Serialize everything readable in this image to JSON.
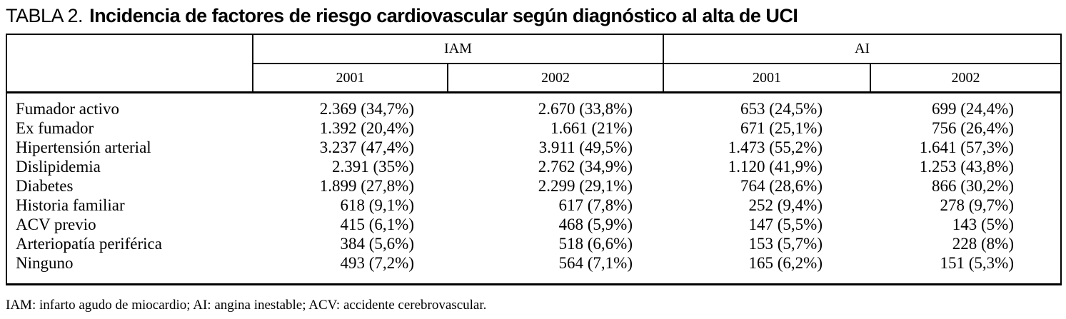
{
  "title": {
    "prefix": "TABLA 2.",
    "text": "Incidencia de factores de riesgo cardiovascular según diagnóstico al alta de UCI"
  },
  "table": {
    "group_headers": [
      {
        "label": "IAM",
        "colspan": 2
      },
      {
        "label": "AI",
        "colspan": 2
      }
    ],
    "year_headers": [
      "2001",
      "2002",
      "2001",
      "2002"
    ],
    "rows": [
      {
        "label": "Fumador activo",
        "values": [
          "2.369 (34,7%)",
          "2.670 (33,8%)",
          "653 (24,5%)",
          "699 (24,4%)"
        ]
      },
      {
        "label": "Ex fumador",
        "values": [
          "1.392 (20,4%)",
          "1.661 (21%)",
          "671 (25,1%)",
          "756 (26,4%)"
        ]
      },
      {
        "label": "Hipertensión arterial",
        "values": [
          "3.237 (47,4%)",
          "3.911 (49,5%)",
          "1.473 (55,2%)",
          "1.641 (57,3%)"
        ]
      },
      {
        "label": "Dislipidemia",
        "values": [
          "2.391 (35%)",
          "2.762 (34,9%)",
          "1.120 (41,9%)",
          "1.253 (43,8%)"
        ]
      },
      {
        "label": "Diabetes",
        "values": [
          "1.899 (27,8%)",
          "2.299 (29,1%)",
          "764 (28,6%)",
          "866 (30,2%)"
        ]
      },
      {
        "label": "Historia familiar",
        "values": [
          "618 (9,1%)",
          "617 (7,8%)",
          "252 (9,4%)",
          "278 (9,7%)"
        ]
      },
      {
        "label": "ACV previo",
        "values": [
          "415 (6,1%)",
          "468 (5,9%)",
          "147 (5,5%)",
          "143 (5%)"
        ]
      },
      {
        "label": "Arteriopatía periférica",
        "values": [
          "384 (5,6%)",
          "518 (6,6%)",
          "153 (5,7%)",
          "228 (8%)"
        ]
      },
      {
        "label": "Ninguno",
        "values": [
          "493 (7,2%)",
          "564 (7,1%)",
          "165 (6,2%)",
          "151 (5,3%)"
        ]
      }
    ]
  },
  "footnote": "IAM: infarto agudo de miocardio; AI: angina inestable; ACV: accidente cerebrovascular.",
  "colors": {
    "text": "#000000",
    "background": "#ffffff",
    "border": "#000000"
  }
}
